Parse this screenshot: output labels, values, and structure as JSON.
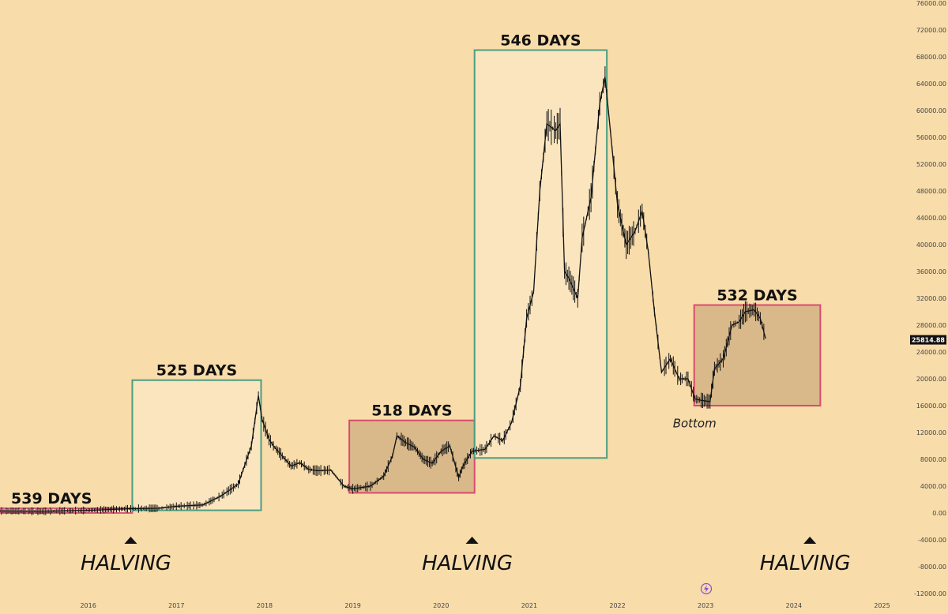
{
  "chart_data": {
    "type": "line",
    "title": "",
    "xlabel": "",
    "ylabel": "",
    "ylim": [
      -12000,
      76000
    ],
    "xlim": [
      2015.0,
      2025.3
    ],
    "grid": false,
    "y_ticks": [
      76000,
      72000,
      68000,
      64000,
      60000,
      56000,
      52000,
      48000,
      44000,
      40000,
      36000,
      32000,
      28000,
      24000,
      20000,
      16000,
      12000,
      8000,
      4000,
      0,
      -4000,
      -8000,
      -12000
    ],
    "y_tick_labels": [
      "76000.00",
      "72000.00",
      "68000.00",
      "64000.00",
      "60000.00",
      "56000.00",
      "52000.00",
      "48000.00",
      "44000.00",
      "40000.00",
      "36000.00",
      "32000.00",
      "28000.00",
      "24000.00",
      "20000.00",
      "16000.00",
      "12000.00",
      "8000.00",
      "4000.00",
      "0.00",
      "-4000.00",
      "-8000.00",
      "-12000.00"
    ],
    "x_ticks": [
      2016,
      2017,
      2018,
      2019,
      2020,
      2021,
      2022,
      2023,
      2024,
      2025
    ],
    "x_tick_labels": [
      "2016",
      "2017",
      "2018",
      "2019",
      "2020",
      "2021",
      "2022",
      "2023",
      "2024",
      "2025"
    ],
    "last_price": {
      "value": 25814.88,
      "label": "25814.88",
      "color": "#111111"
    },
    "series": [
      {
        "color": "#111111",
        "x": [
          2015.0,
          2015.5,
          2016.0,
          2016.5,
          2016.8,
          2017.0,
          2017.3,
          2017.5,
          2017.7,
          2017.85,
          2017.93,
          2017.97,
          2018.05,
          2018.1,
          2018.2,
          2018.3,
          2018.4,
          2018.5,
          2018.6,
          2018.75,
          2018.9,
          2019.0,
          2019.2,
          2019.35,
          2019.45,
          2019.5,
          2019.6,
          2019.7,
          2019.8,
          2019.9,
          2020.0,
          2020.1,
          2020.2,
          2020.25,
          2020.35,
          2020.5,
          2020.6,
          2020.7,
          2020.8,
          2020.9,
          2020.97,
          2021.05,
          2021.12,
          2021.2,
          2021.3,
          2021.35,
          2021.4,
          2021.45,
          2021.55,
          2021.6,
          2021.7,
          2021.8,
          2021.86,
          2021.92,
          2022.0,
          2022.1,
          2022.2,
          2022.28,
          2022.35,
          2022.42,
          2022.5,
          2022.6,
          2022.7,
          2022.8,
          2022.88,
          2022.95,
          2023.05,
          2023.1,
          2023.2,
          2023.3,
          2023.38,
          2023.45,
          2023.55,
          2023.62,
          2023.68
        ],
        "y": [
          300,
          250,
          400,
          650,
          700,
          1000,
          1200,
          2500,
          4300,
          10000,
          17500,
          14000,
          11000,
          10000,
          8500,
          7000,
          7500,
          6500,
          6300,
          6400,
          4000,
          3600,
          4000,
          5500,
          8500,
          11500,
          10500,
          9800,
          8000,
          7400,
          9200,
          10000,
          5300,
          7000,
          9200,
          9500,
          11500,
          10800,
          13500,
          19000,
          29000,
          33000,
          48000,
          58000,
          57000,
          58000,
          36000,
          35000,
          32000,
          41000,
          47000,
          61000,
          65000,
          57000,
          46000,
          40000,
          42000,
          45000,
          39000,
          30000,
          21000,
          23000,
          20000,
          20000,
          17000,
          16800,
          16600,
          21500,
          23000,
          28000,
          28500,
          30000,
          30300,
          29000,
          26000
        ]
      }
    ],
    "annotations": [
      {
        "text": "539 DAYS",
        "x_start": 2015.0,
        "x_end": 2016.5,
        "y_low": 0,
        "y_high": 700,
        "box_color": "#d95a7a",
        "filled": false
      },
      {
        "text": "525 DAYS",
        "x_start": 2016.5,
        "x_end": 2017.96,
        "y_low": 400,
        "y_high": 19800,
        "box_color": "#4a9e82",
        "filled": false
      },
      {
        "text": "518 DAYS",
        "x_start": 2018.96,
        "x_end": 2020.38,
        "y_low": 3000,
        "y_high": 13800,
        "box_color": "#d94b6e",
        "filled": true
      },
      {
        "text": "546 DAYS",
        "x_start": 2020.38,
        "x_end": 2021.88,
        "y_low": 8200,
        "y_high": 69000,
        "box_color": "#4a9e82",
        "filled": false
      },
      {
        "text": "532 DAYS",
        "x_start": 2022.87,
        "x_end": 2024.3,
        "y_low": 16000,
        "y_high": 31000,
        "box_color": "#d94b6e",
        "filled": true
      }
    ],
    "halvings": [
      {
        "label": "HALVING",
        "x": 2016.5
      },
      {
        "label": "HALVING",
        "x": 2020.37
      },
      {
        "label": "HALVING",
        "x": 2024.2
      }
    ],
    "notes": [
      {
        "text": "Bottom",
        "x": 2022.87,
        "y": 14200
      }
    ]
  }
}
